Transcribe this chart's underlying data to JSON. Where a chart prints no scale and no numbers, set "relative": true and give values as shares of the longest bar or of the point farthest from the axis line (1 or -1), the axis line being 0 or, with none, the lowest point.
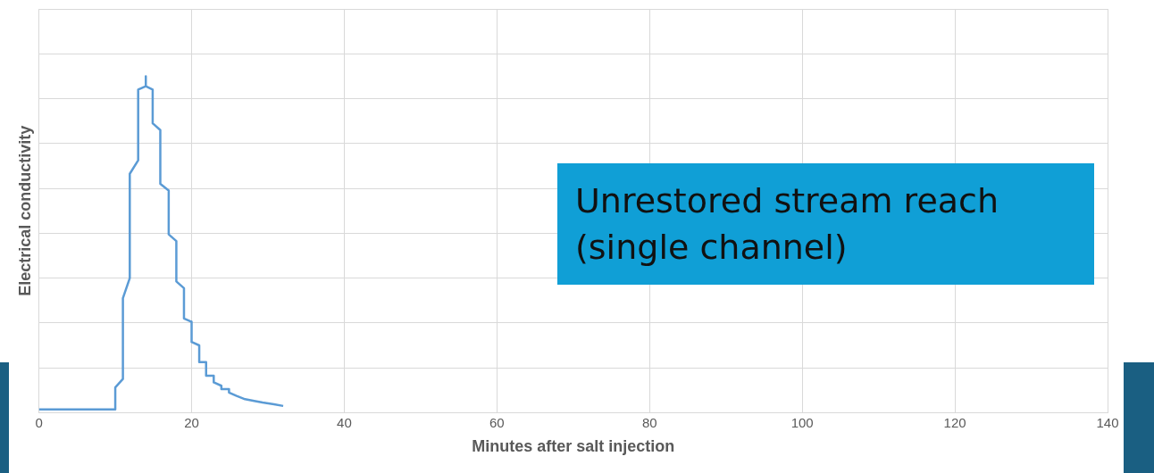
{
  "chart_data": {
    "type": "line",
    "relative": true,
    "xlabel": "Minutes after salt injection",
    "ylabel": "Electrical conductivity",
    "annotations": [
      "Unrestored stream reach (single channel)"
    ],
    "xlim": [
      0,
      140
    ],
    "xticks": [
      0,
      20,
      40,
      60,
      80,
      100,
      120,
      140
    ],
    "grid": true,
    "legend": false,
    "marker": "none",
    "line_style": "solid",
    "series": [
      {
        "color": "#5b9bd5",
        "x": [
          0,
          9.0,
          10.0,
          10.0,
          11.0,
          11.0,
          11.9,
          11.9,
          13.0,
          13.0,
          14.0,
          14.0,
          14.0,
          14.9,
          14.9,
          15.9,
          15.9,
          17.0,
          17.0,
          18.0,
          18.0,
          19.0,
          19.0,
          20.0,
          20.0,
          21.0,
          21.0,
          21.9,
          21.9,
          22.9,
          22.9,
          23.9,
          23.9,
          24.9,
          24.9,
          25.9,
          27.0,
          28.2,
          29.3,
          30.8,
          32.0
        ],
        "values": [
          0.01,
          0.01,
          0.01,
          0.075,
          0.1,
          0.34,
          0.4,
          0.71,
          0.75,
          0.96,
          0.97,
          1.0,
          0.97,
          0.96,
          0.86,
          0.84,
          0.68,
          0.66,
          0.53,
          0.51,
          0.39,
          0.37,
          0.28,
          0.27,
          0.21,
          0.2,
          0.15,
          0.15,
          0.11,
          0.11,
          0.09,
          0.08,
          0.07,
          0.07,
          0.06,
          0.05,
          0.04,
          0.035,
          0.03,
          0.025,
          0.02
        ]
      }
    ]
  }
}
